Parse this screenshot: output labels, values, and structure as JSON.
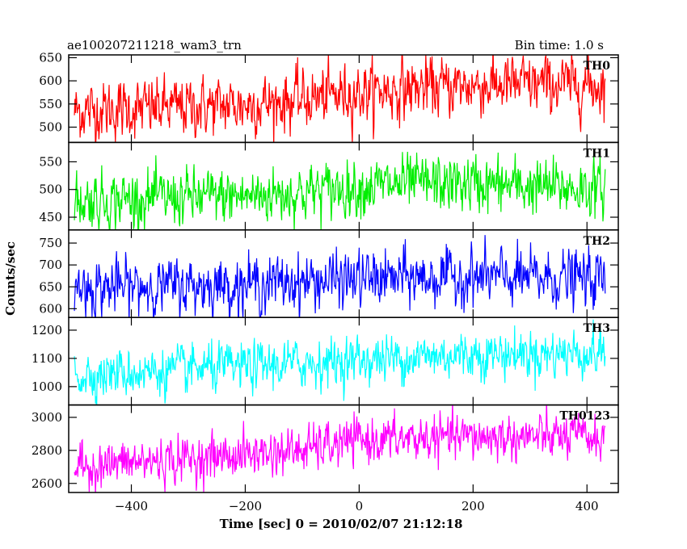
{
  "chart_data": {
    "type": "line",
    "title": "ae100207211218_wam3_trn",
    "subtitle": "Bin time: 1.0 s",
    "xlabel": "Time [sec] 0 = 2010/02/07 21:12:18",
    "ylabel": "Counts/sec",
    "xlim": [
      -510,
      455
    ],
    "x_ticks": [
      "−400",
      "−200",
      "0",
      "200",
      "400"
    ],
    "x_tick_values": [
      -400,
      -200,
      0,
      200,
      400
    ],
    "x_range": [
      -500,
      432
    ],
    "grid": false,
    "panels": [
      {
        "name": "TH0",
        "color": "#ff0000",
        "ylim": [
          467,
          656
        ],
        "y_ticks": [
          "500",
          "550",
          "600",
          "650"
        ],
        "y_tick_values": [
          500,
          550,
          600,
          650
        ],
        "trend": [
          [
            -500,
            535
          ],
          [
            -200,
            548
          ],
          [
            -100,
            560
          ],
          [
            0,
            575
          ],
          [
            100,
            585
          ],
          [
            200,
            590
          ],
          [
            300,
            592
          ],
          [
            432,
            590
          ]
        ],
        "noise_sd": 30,
        "n_points": 933
      },
      {
        "name": "TH1",
        "color": "#00ee00",
        "ylim": [
          427,
          585
        ],
        "y_ticks": [
          "450",
          "500",
          "550"
        ],
        "y_tick_values": [
          450,
          500,
          550
        ],
        "trend": [
          [
            -500,
            480
          ],
          [
            -200,
            488
          ],
          [
            -100,
            495
          ],
          [
            0,
            505
          ],
          [
            100,
            510
          ],
          [
            200,
            510
          ],
          [
            300,
            505
          ],
          [
            432,
            500
          ]
        ],
        "noise_sd": 24,
        "n_points": 933
      },
      {
        "name": "TH2",
        "color": "#0000ff",
        "ylim": [
          580,
          780
        ],
        "y_ticks": [
          "600",
          "650",
          "700",
          "750"
        ],
        "y_tick_values": [
          600,
          650,
          700,
          750
        ],
        "trend": [
          [
            -500,
            648
          ],
          [
            -200,
            655
          ],
          [
            0,
            668
          ],
          [
            200,
            672
          ],
          [
            432,
            668
          ]
        ],
        "noise_sd": 30,
        "n_points": 933
      },
      {
        "name": "TH3",
        "color": "#00ffff",
        "ylim": [
          935,
          1245
        ],
        "y_ticks": [
          "1000",
          "1100",
          "1200"
        ],
        "y_tick_values": [
          1000,
          1100,
          1200
        ],
        "trend": [
          [
            -500,
            1040
          ],
          [
            -200,
            1070
          ],
          [
            0,
            1095
          ],
          [
            200,
            1115
          ],
          [
            432,
            1120
          ]
        ],
        "noise_sd": 40,
        "n_points": 933
      },
      {
        "name": "TH0123",
        "color": "#ff00ff",
        "ylim": [
          2545,
          3075
        ],
        "y_ticks": [
          "2600",
          "2800",
          "3000"
        ],
        "y_tick_values": [
          2600,
          2800,
          3000
        ],
        "trend": [
          [
            -500,
            2700
          ],
          [
            -300,
            2750
          ],
          [
            -100,
            2800
          ],
          [
            0,
            2860
          ],
          [
            200,
            2880
          ],
          [
            432,
            2880
          ]
        ],
        "noise_sd": 65,
        "n_points": 933
      }
    ]
  }
}
